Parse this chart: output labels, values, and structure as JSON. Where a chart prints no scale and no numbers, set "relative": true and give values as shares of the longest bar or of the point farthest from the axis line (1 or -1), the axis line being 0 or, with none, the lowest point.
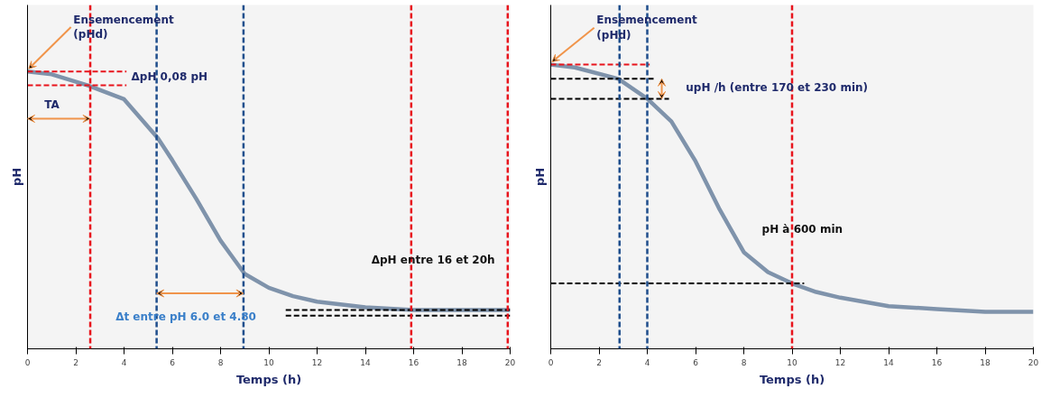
{
  "chart_data": [
    {
      "type": "line",
      "relative": true,
      "xlabel": "Temps (h)",
      "ylabel": "pH",
      "xlim": [
        0,
        20
      ],
      "xticks": [
        0,
        2,
        4,
        6,
        8,
        10,
        12,
        14,
        16,
        18,
        20
      ],
      "grid": false,
      "marker": "none",
      "series": [
        {
          "color": "#7f93ab",
          "x": [
            0,
            1,
            2.5,
            4,
            5.4,
            6,
            7,
            8,
            9,
            10,
            11,
            12,
            14,
            16,
            20
          ],
          "values": [
            1.0,
            0.99,
            0.95,
            0.9,
            0.76,
            0.68,
            0.54,
            0.39,
            0.27,
            0.22,
            0.19,
            0.17,
            0.15,
            0.14,
            0.14
          ],
          "line_style": "solid"
        },
        {
          "color": "#e8141c",
          "x": [
            0,
            4.1
          ],
          "values": [
            1.0,
            1.0
          ],
          "line_style": "dashed"
        },
        {
          "color": "#e8141c",
          "x": [
            0,
            4.1
          ],
          "values": [
            0.95,
            0.95
          ],
          "line_style": "dashed"
        },
        {
          "color": "#000000",
          "x": [
            10.7,
            20
          ],
          "values": [
            0.14,
            0.14
          ],
          "line_style": "dashed"
        },
        {
          "color": "#000000",
          "x": [
            10.7,
            20
          ],
          "values": [
            0.12,
            0.12
          ],
          "line_style": "dashed"
        }
      ],
      "ref_lines": [
        {
          "axis": "x",
          "value": 2.6,
          "color": "#e8141c",
          "line_style": "dashed"
        },
        {
          "axis": "x",
          "value": 5.35,
          "color": "#1f4e8c",
          "line_style": "dashed"
        },
        {
          "axis": "x",
          "value": 8.95,
          "color": "#1f4e8c",
          "line_style": "dashed"
        },
        {
          "axis": "x",
          "value": 15.9,
          "color": "#e8141c",
          "line_style": "dashed"
        },
        {
          "axis": "x",
          "value": 19.9,
          "color": "#e8141c",
          "line_style": "dashed"
        }
      ],
      "annotations": [
        "Ensemencement\n(pHd)",
        "ΔpH 0,08 pH",
        "TA",
        "Δt entre pH 6.0 et 4.80",
        "ΔpH entre 16 et 20h"
      ]
    },
    {
      "type": "line",
      "relative": true,
      "xlabel": "Temps (h)",
      "ylabel": "pH",
      "xlim": [
        0,
        20
      ],
      "xticks": [
        0,
        2,
        4,
        6,
        8,
        10,
        12,
        14,
        16,
        18,
        20
      ],
      "grid": false,
      "marker": "none",
      "series": [
        {
          "color": "#7f93ab",
          "x": [
            0,
            1,
            2.8,
            4,
            5,
            6,
            7,
            8,
            9,
            10,
            11,
            12,
            14,
            16,
            18,
            20
          ],
          "values": [
            1.0,
            0.99,
            0.95,
            0.88,
            0.8,
            0.66,
            0.49,
            0.34,
            0.27,
            0.23,
            0.2,
            0.18,
            0.15,
            0.14,
            0.13,
            0.13
          ],
          "line_style": "solid"
        },
        {
          "color": "#e8141c",
          "x": [
            0,
            4.1
          ],
          "values": [
            1.0,
            1.0
          ],
          "line_style": "dashed"
        },
        {
          "color": "#000000",
          "x": [
            0,
            4.3
          ],
          "values": [
            0.95,
            0.95
          ],
          "line_style": "dashed"
        },
        {
          "color": "#000000",
          "x": [
            0,
            4.9
          ],
          "values": [
            0.88,
            0.88
          ],
          "line_style": "dashed"
        },
        {
          "color": "#000000",
          "x": [
            0,
            10.5
          ],
          "values": [
            0.23,
            0.23
          ],
          "line_style": "dashed"
        }
      ],
      "ref_lines": [
        {
          "axis": "x",
          "value": 2.85,
          "color": "#1f4e8c",
          "line_style": "dashed"
        },
        {
          "axis": "x",
          "value": 4.0,
          "color": "#1f4e8c",
          "line_style": "dashed"
        },
        {
          "axis": "x",
          "value": 10.0,
          "color": "#e8141c",
          "line_style": "dashed"
        }
      ],
      "annotations": [
        "Ensemencement\n(pHd)",
        "upH /h (entre 170 et 230 min)",
        "pH à 600 min"
      ]
    }
  ]
}
